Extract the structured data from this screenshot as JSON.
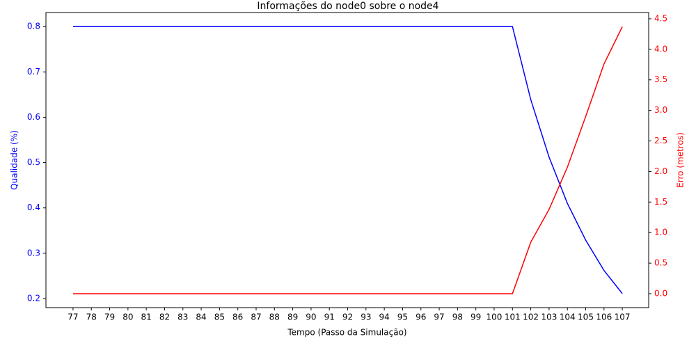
{
  "chart_data": {
    "type": "line",
    "title": "Informações do node0 sobre o node4",
    "x_label": "Tempo (Passo da Simulação)",
    "y_label": "Qualidade (%)",
    "y2_label": "Erro (metros)",
    "x": [
      77,
      78,
      79,
      80,
      81,
      82,
      83,
      84,
      85,
      86,
      87,
      88,
      89,
      90,
      91,
      92,
      93,
      94,
      95,
      96,
      97,
      98,
      99,
      100,
      101,
      102,
      103,
      104,
      105,
      106,
      107
    ],
    "xlim": [
      75.52,
      108.44
    ],
    "xticks": [
      77,
      78,
      79,
      80,
      81,
      82,
      83,
      84,
      85,
      86,
      87,
      88,
      89,
      90,
      91,
      92,
      93,
      94,
      95,
      96,
      97,
      98,
      99,
      100,
      101,
      102,
      103,
      104,
      105,
      106,
      107
    ],
    "ylim": [
      0.18,
      0.831
    ],
    "yticks": [
      0.2,
      0.3,
      0.4,
      0.5,
      0.6,
      0.7,
      0.8
    ],
    "y_color": "#0000ff",
    "y2lim": [
      -0.228,
      4.602
    ],
    "y2ticks": [
      {
        "value": 0,
        "label": "0.0"
      },
      0.5,
      {
        "value": 1,
        "label": "1.0"
      },
      1.5,
      {
        "value": 2,
        "label": "2.0"
      },
      2.5,
      {
        "value": 3,
        "label": "3.0"
      },
      3.5,
      {
        "value": 4,
        "label": "4.0"
      },
      4.5
    ],
    "y2_color": "#ff0000",
    "series": [
      {
        "name": "Qualidade",
        "color": "#0000ff",
        "axis": "y",
        "values": [
          0.8,
          0.8,
          0.8,
          0.8,
          0.8,
          0.8,
          0.8,
          0.8,
          0.8,
          0.8,
          0.8,
          0.8,
          0.8,
          0.8,
          0.8,
          0.8,
          0.8,
          0.8,
          0.8,
          0.8,
          0.8,
          0.8,
          0.8,
          0.8,
          0.8,
          0.639,
          0.512,
          0.41,
          0.329,
          0.262,
          0.211
        ]
      },
      {
        "name": "Erro",
        "color": "#ff0000",
        "axis": "y2",
        "values": [
          0,
          0,
          0,
          0,
          0,
          0,
          0,
          0,
          0,
          0,
          0,
          0,
          0,
          0,
          0,
          0,
          0,
          0,
          0,
          0,
          0,
          0,
          0,
          0,
          0,
          0.843,
          1.38,
          2.07,
          2.9,
          3.76,
          4.37
        ]
      }
    ]
  }
}
